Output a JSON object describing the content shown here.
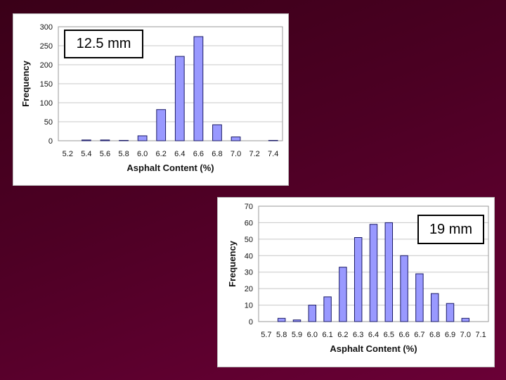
{
  "charts": {
    "chart1": {
      "label": "12.5 mm"
    },
    "chart2": {
      "label": "19 mm"
    }
  },
  "chart_data": [
    {
      "type": "bar",
      "annotation": "12.5 mm",
      "xlabel": "Asphalt Content (%)",
      "ylabel": "Frequency",
      "ylim": [
        0,
        300
      ],
      "yticks": [
        0,
        50,
        100,
        150,
        200,
        250,
        300
      ],
      "categories": [
        "5.2",
        "5.4",
        "5.6",
        "5.8",
        "6.0",
        "6.2",
        "6.4",
        "6.6",
        "6.8",
        "7.0",
        "7.2",
        "7.4"
      ],
      "values": [
        0,
        2,
        2,
        1,
        13,
        82,
        222,
        274,
        42,
        10,
        0,
        1
      ],
      "bar_color": "#9999ff",
      "grid": "horizontal",
      "legend": "none"
    },
    {
      "type": "bar",
      "annotation": "19 mm",
      "xlabel": "Asphalt Content (%)",
      "ylabel": "Frequency",
      "ylim": [
        0,
        70
      ],
      "yticks": [
        0,
        10,
        20,
        30,
        40,
        50,
        60,
        70
      ],
      "categories": [
        "5.7",
        "5.8",
        "5.9",
        "6.0",
        "6.1",
        "6.2",
        "6.3",
        "6.4",
        "6.5",
        "6.6",
        "6.7",
        "6.8",
        "6.9",
        "7.0",
        "7.1"
      ],
      "values": [
        0,
        2,
        1,
        10,
        15,
        33,
        51,
        59,
        60,
        40,
        29,
        17,
        11,
        2,
        0
      ],
      "bar_color": "#9999ff",
      "grid": "horizontal",
      "legend": "none"
    }
  ]
}
